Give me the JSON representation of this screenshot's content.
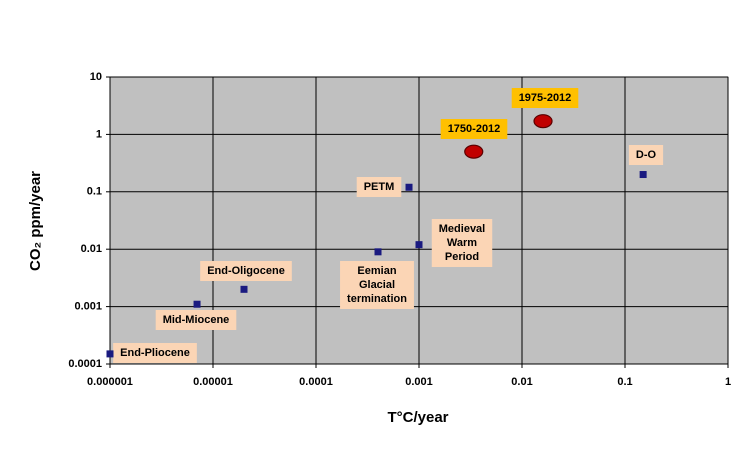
{
  "chart_data": {
    "type": "scatter",
    "xlabel": "T°C/year",
    "ylabel": "CO₂ ppm/year",
    "log_x": true,
    "log_y": true,
    "grid": true,
    "xlim": [
      1e-06,
      1
    ],
    "ylim": [
      0.0001,
      10
    ],
    "xticks": [
      1e-06,
      1e-05,
      0.0001,
      0.001,
      0.01,
      0.1,
      1
    ],
    "yticks": [
      0.0001,
      0.001,
      0.01,
      0.1,
      1,
      10
    ],
    "plot_color": "#c0c0c0",
    "points": [
      {
        "label": [
          "End-Pliocene"
        ],
        "x": 1e-06,
        "y": 0.00015,
        "marker": "square",
        "color": "#1a1a80",
        "label_color": "#fbd5b5"
      },
      {
        "label": [
          "Mid-Miocene"
        ],
        "x": 7e-06,
        "y": 0.0011,
        "marker": "square",
        "color": "#1a1a80",
        "label_color": "#fbd5b5"
      },
      {
        "label": [
          "End-Oligocene"
        ],
        "x": 2e-05,
        "y": 0.002,
        "marker": "square",
        "color": "#1a1a80",
        "label_color": "#fbd5b5"
      },
      {
        "label": [
          "Eemian",
          "Glacial",
          "termination"
        ],
        "x": 0.0004,
        "y": 0.009,
        "marker": "square",
        "color": "#1a1a80",
        "label_color": "#fbd5b5"
      },
      {
        "label": [
          "Medieval",
          "Warm",
          "Period"
        ],
        "x": 0.001,
        "y": 0.012,
        "marker": "square",
        "color": "#1a1a80",
        "label_color": "#fbd5b5"
      },
      {
        "label": [
          "PETM"
        ],
        "x": 0.0008,
        "y": 0.12,
        "marker": "square",
        "color": "#1a1a80",
        "label_color": "#fbd5b5"
      },
      {
        "label": [
          "D-O"
        ],
        "x": 0.15,
        "y": 0.2,
        "marker": "square",
        "color": "#1a1a80",
        "label_color": "#fbd5b5"
      },
      {
        "label": [
          "1750-2012"
        ],
        "x": 0.0034,
        "y": 0.5,
        "marker": "ellipse",
        "color": "#c00000",
        "label_color": "#ffc000"
      },
      {
        "label": [
          "1975-2012"
        ],
        "x": 0.016,
        "y": 1.7,
        "marker": "ellipse",
        "color": "#c00000",
        "label_color": "#ffc000"
      }
    ]
  }
}
